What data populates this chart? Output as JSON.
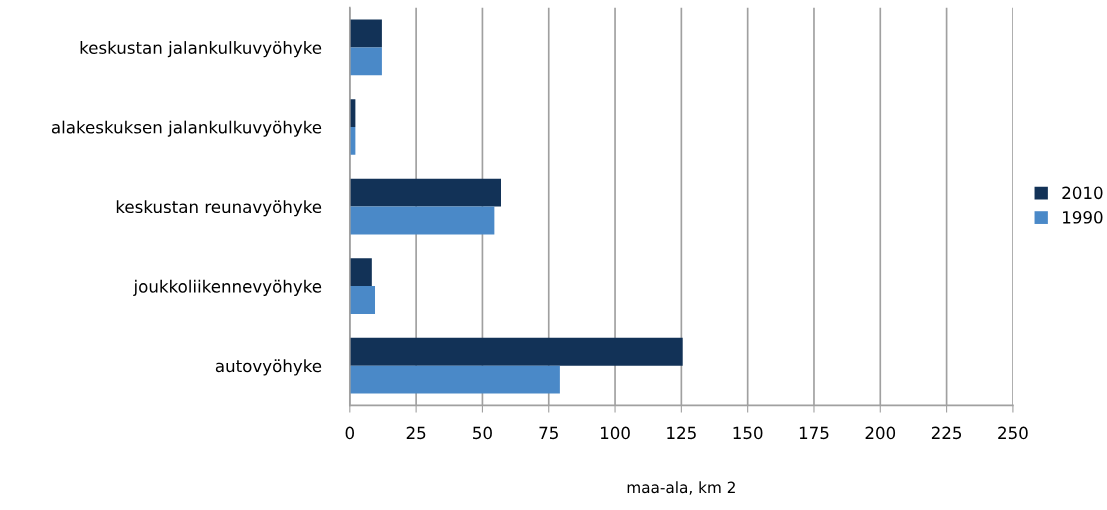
{
  "chart_data": {
    "type": "bar",
    "orientation": "horizontal",
    "xlabel": "maa-ala, km 2",
    "categories": [
      "keskustan jalankulkuvyöhyke",
      "alakeskuksen jalankulkuvyöhyke",
      "keskustan reunavyöhyke",
      "joukkoliikennevyöhyke",
      "autovyöhyke"
    ],
    "series": [
      {
        "name": "2010",
        "color": "#123257",
        "values": [
          12.1,
          2.1,
          57.0,
          8.3,
          125.5
        ]
      },
      {
        "name": "1990",
        "color": "#4a89c8",
        "values": [
          12.1,
          2.1,
          54.5,
          9.5,
          79.2
        ]
      }
    ],
    "xlim": [
      0,
      250
    ],
    "xticks": [
      0,
      25,
      50,
      75,
      100,
      125,
      150,
      175,
      200,
      225,
      250
    ],
    "grid": "x",
    "legend": "right"
  }
}
